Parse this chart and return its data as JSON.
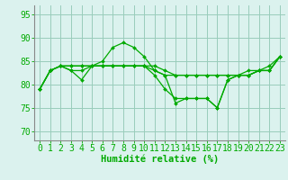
{
  "xlabel": "Humidité relative (%)",
  "bg_color": "#dbf2ee",
  "grid_color": "#99ccbb",
  "line_color": "#00aa00",
  "spine_color": "#888888",
  "ylim": [
    68,
    97
  ],
  "xlim": [
    -0.5,
    23.5
  ],
  "yticks": [
    70,
    75,
    80,
    85,
    90,
    95
  ],
  "xticks": [
    0,
    1,
    2,
    3,
    4,
    5,
    6,
    7,
    8,
    9,
    10,
    11,
    12,
    13,
    14,
    15,
    16,
    17,
    18,
    19,
    20,
    21,
    22,
    23
  ],
  "tick_fontsize": 7,
  "xlabel_fontsize": 7.5,
  "series": [
    [
      79,
      83,
      84,
      83,
      81,
      84,
      85,
      88,
      89,
      88,
      86,
      83,
      82,
      76,
      77,
      77,
      77,
      75,
      81,
      82,
      82,
      83,
      84,
      86
    ],
    [
      79,
      83,
      84,
      84,
      84,
      84,
      84,
      84,
      84,
      84,
      84,
      84,
      83,
      82,
      82,
      82,
      82,
      82,
      82,
      82,
      82,
      83,
      83,
      86
    ],
    [
      79,
      83,
      84,
      83,
      83,
      84,
      84,
      84,
      84,
      84,
      84,
      83,
      82,
      82,
      82,
      82,
      82,
      82,
      82,
      82,
      83,
      83,
      83,
      86
    ],
    [
      79,
      83,
      84,
      84,
      84,
      84,
      84,
      84,
      84,
      84,
      84,
      82,
      79,
      77,
      77,
      77,
      77,
      75,
      81,
      82,
      82,
      83,
      83,
      86
    ]
  ]
}
